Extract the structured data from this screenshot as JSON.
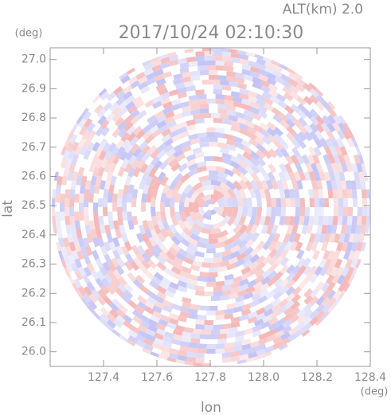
{
  "chart_data": {
    "type": "radar-ppi",
    "title": "2017/10/24 02:10:30",
    "subtitle": "ALT(km) 2.0",
    "x_label": "lon",
    "x_unit": "(deg)",
    "y_label": "lat",
    "y_unit": "(deg)",
    "xlim": [
      127.2,
      128.4
    ],
    "xticks": [
      127.4,
      127.6,
      127.8,
      {
        "value": 128.0,
        "label": "128.0"
      },
      128.2,
      128.4
    ],
    "ylim": [
      25.95,
      27.04
    ],
    "yticks": [
      {
        "value": 26.0,
        "label": "26.0"
      },
      26.1,
      26.2,
      26.3,
      26.4,
      26.5,
      26.6,
      26.7,
      26.8,
      26.9,
      {
        "value": 27.0,
        "label": "27.0"
      }
    ]
  }
}
